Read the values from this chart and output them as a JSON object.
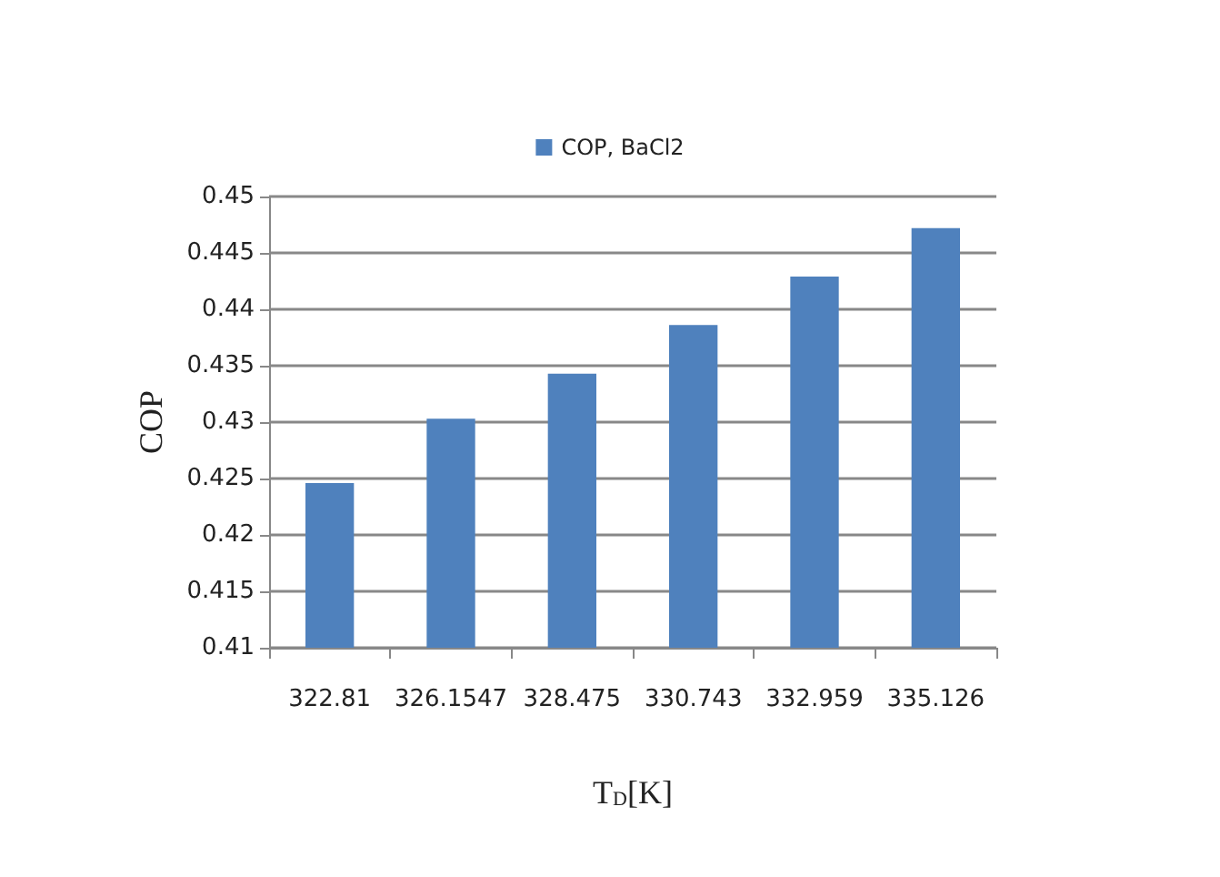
{
  "chart_data": {
    "type": "bar",
    "xlabel": "T$_{D}$[K]",
    "ylabel": "COP",
    "categories": [
      "322.81",
      "326.1547",
      "328.475",
      "330.743",
      "332.959",
      "335.126"
    ],
    "series": [
      {
        "name": "COP, BaCl2",
        "color": "#4f81bd",
        "values": [
          0.4246,
          0.4303,
          0.4343,
          0.4386,
          0.4429,
          0.4472
        ]
      }
    ],
    "ylim": [
      0.41,
      0.45
    ],
    "yticks": [
      0.41,
      0.415,
      0.42,
      0.425,
      0.43,
      0.435,
      0.44,
      0.445,
      0.45
    ],
    "grid": "y",
    "legend": "top"
  }
}
